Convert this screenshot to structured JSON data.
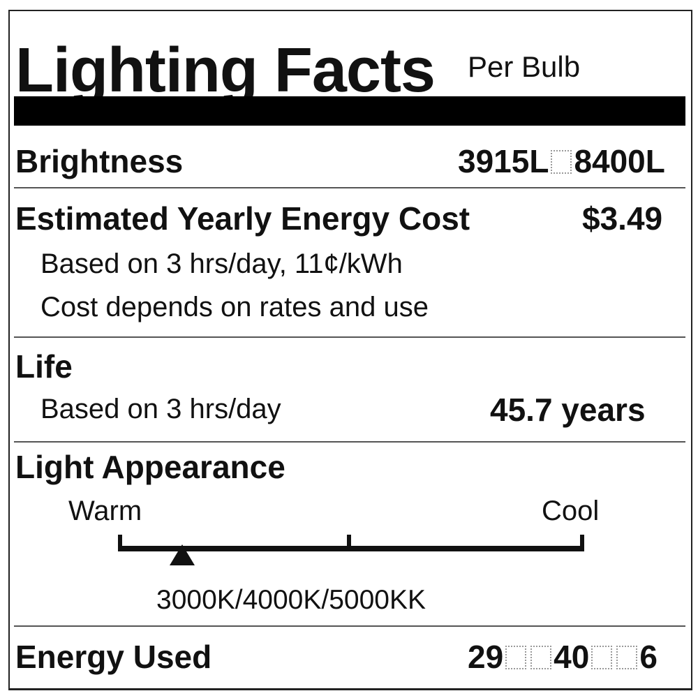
{
  "header": {
    "title": "Lighting Facts",
    "subtitle": "Per Bulb"
  },
  "brightness": {
    "label": "Brightness",
    "value_parts": [
      "3915L",
      "8400L"
    ]
  },
  "energy_cost": {
    "label": "Estimated Yearly Energy Cost",
    "value": "$3.49",
    "note1": "Based on 3 hrs/day, 11¢/kWh",
    "note2": "Cost depends on rates and use"
  },
  "life": {
    "label": "Life",
    "note": "Based on 3 hrs/day",
    "value": "45.7 years"
  },
  "light_appearance": {
    "label": "Light Appearance",
    "warm_label": "Warm",
    "cool_label": "Cool",
    "temperature": "3000K/4000K/5000KK",
    "marker_position_fraction": 0.33
  },
  "energy_used": {
    "label": "Energy Used",
    "value_parts": [
      "29",
      "40",
      "6"
    ]
  }
}
